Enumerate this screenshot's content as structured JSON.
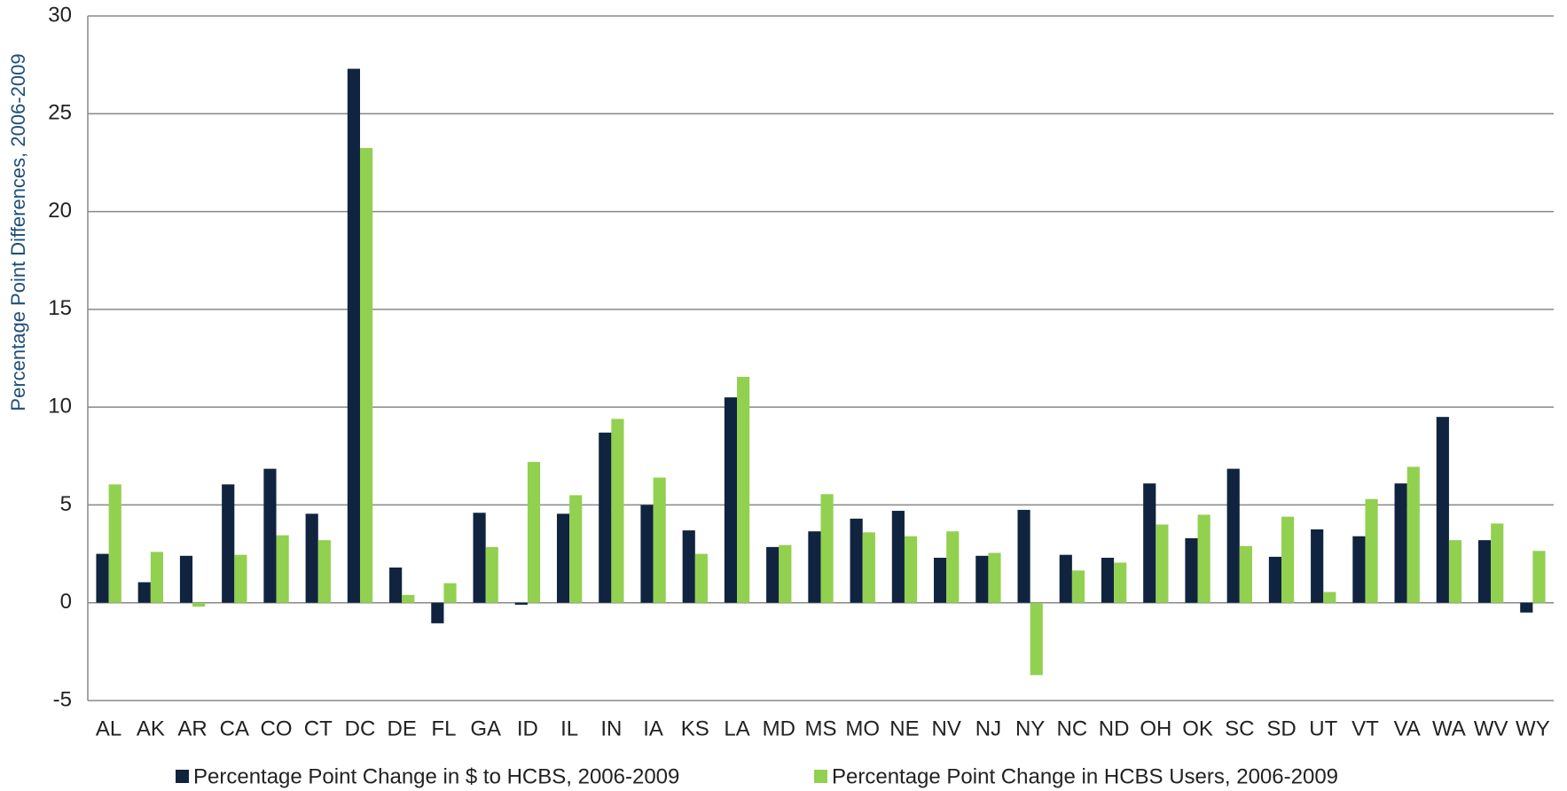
{
  "chart_data": {
    "type": "bar",
    "y_label": "Percentage Point Differences, 2006-2009",
    "categories": [
      "AL",
      "AK",
      "AR",
      "CA",
      "CO",
      "CT",
      "DC",
      "DE",
      "FL",
      "GA",
      "ID",
      "IL",
      "IN",
      "IA",
      "KS",
      "LA",
      "MD",
      "MS",
      "MO",
      "NE",
      "NV",
      "NJ",
      "NY",
      "NC",
      "ND",
      "OH",
      "OK",
      "SC",
      "SD",
      "UT",
      "VT",
      "VA",
      "WA",
      "WV",
      "WY"
    ],
    "series": [
      {
        "name": "Percentage Point Change in $ to HCBS, 2006-2009",
        "color": "#10243f",
        "values": [
          2.5,
          1.05,
          2.4,
          6.05,
          6.85,
          4.55,
          27.3,
          1.8,
          -1.05,
          4.6,
          -0.1,
          4.55,
          8.7,
          5.0,
          3.7,
          10.5,
          2.85,
          3.65,
          4.3,
          4.7,
          2.3,
          2.4,
          4.75,
          2.45,
          2.3,
          6.1,
          3.3,
          6.85,
          2.35,
          3.75,
          3.4,
          6.1,
          9.5,
          3.2,
          -0.5
        ]
      },
      {
        "name": "Percentage Point Change in HCBS Users, 2006-2009",
        "color": "#92d050",
        "values": [
          6.05,
          2.6,
          -0.2,
          2.45,
          3.45,
          3.2,
          23.25,
          0.4,
          1.0,
          2.85,
          7.2,
          5.5,
          9.4,
          6.4,
          2.5,
          11.55,
          2.95,
          5.55,
          3.6,
          3.4,
          3.65,
          2.55,
          -3.7,
          1.65,
          2.05,
          4.0,
          4.5,
          2.9,
          4.4,
          0.55,
          5.3,
          6.95,
          3.2,
          4.05,
          2.65
        ]
      }
    ],
    "ylim": [
      -5,
      30
    ],
    "yticks": [
      -5,
      0,
      5,
      10,
      15,
      20,
      25,
      30
    ],
    "grid": true
  }
}
